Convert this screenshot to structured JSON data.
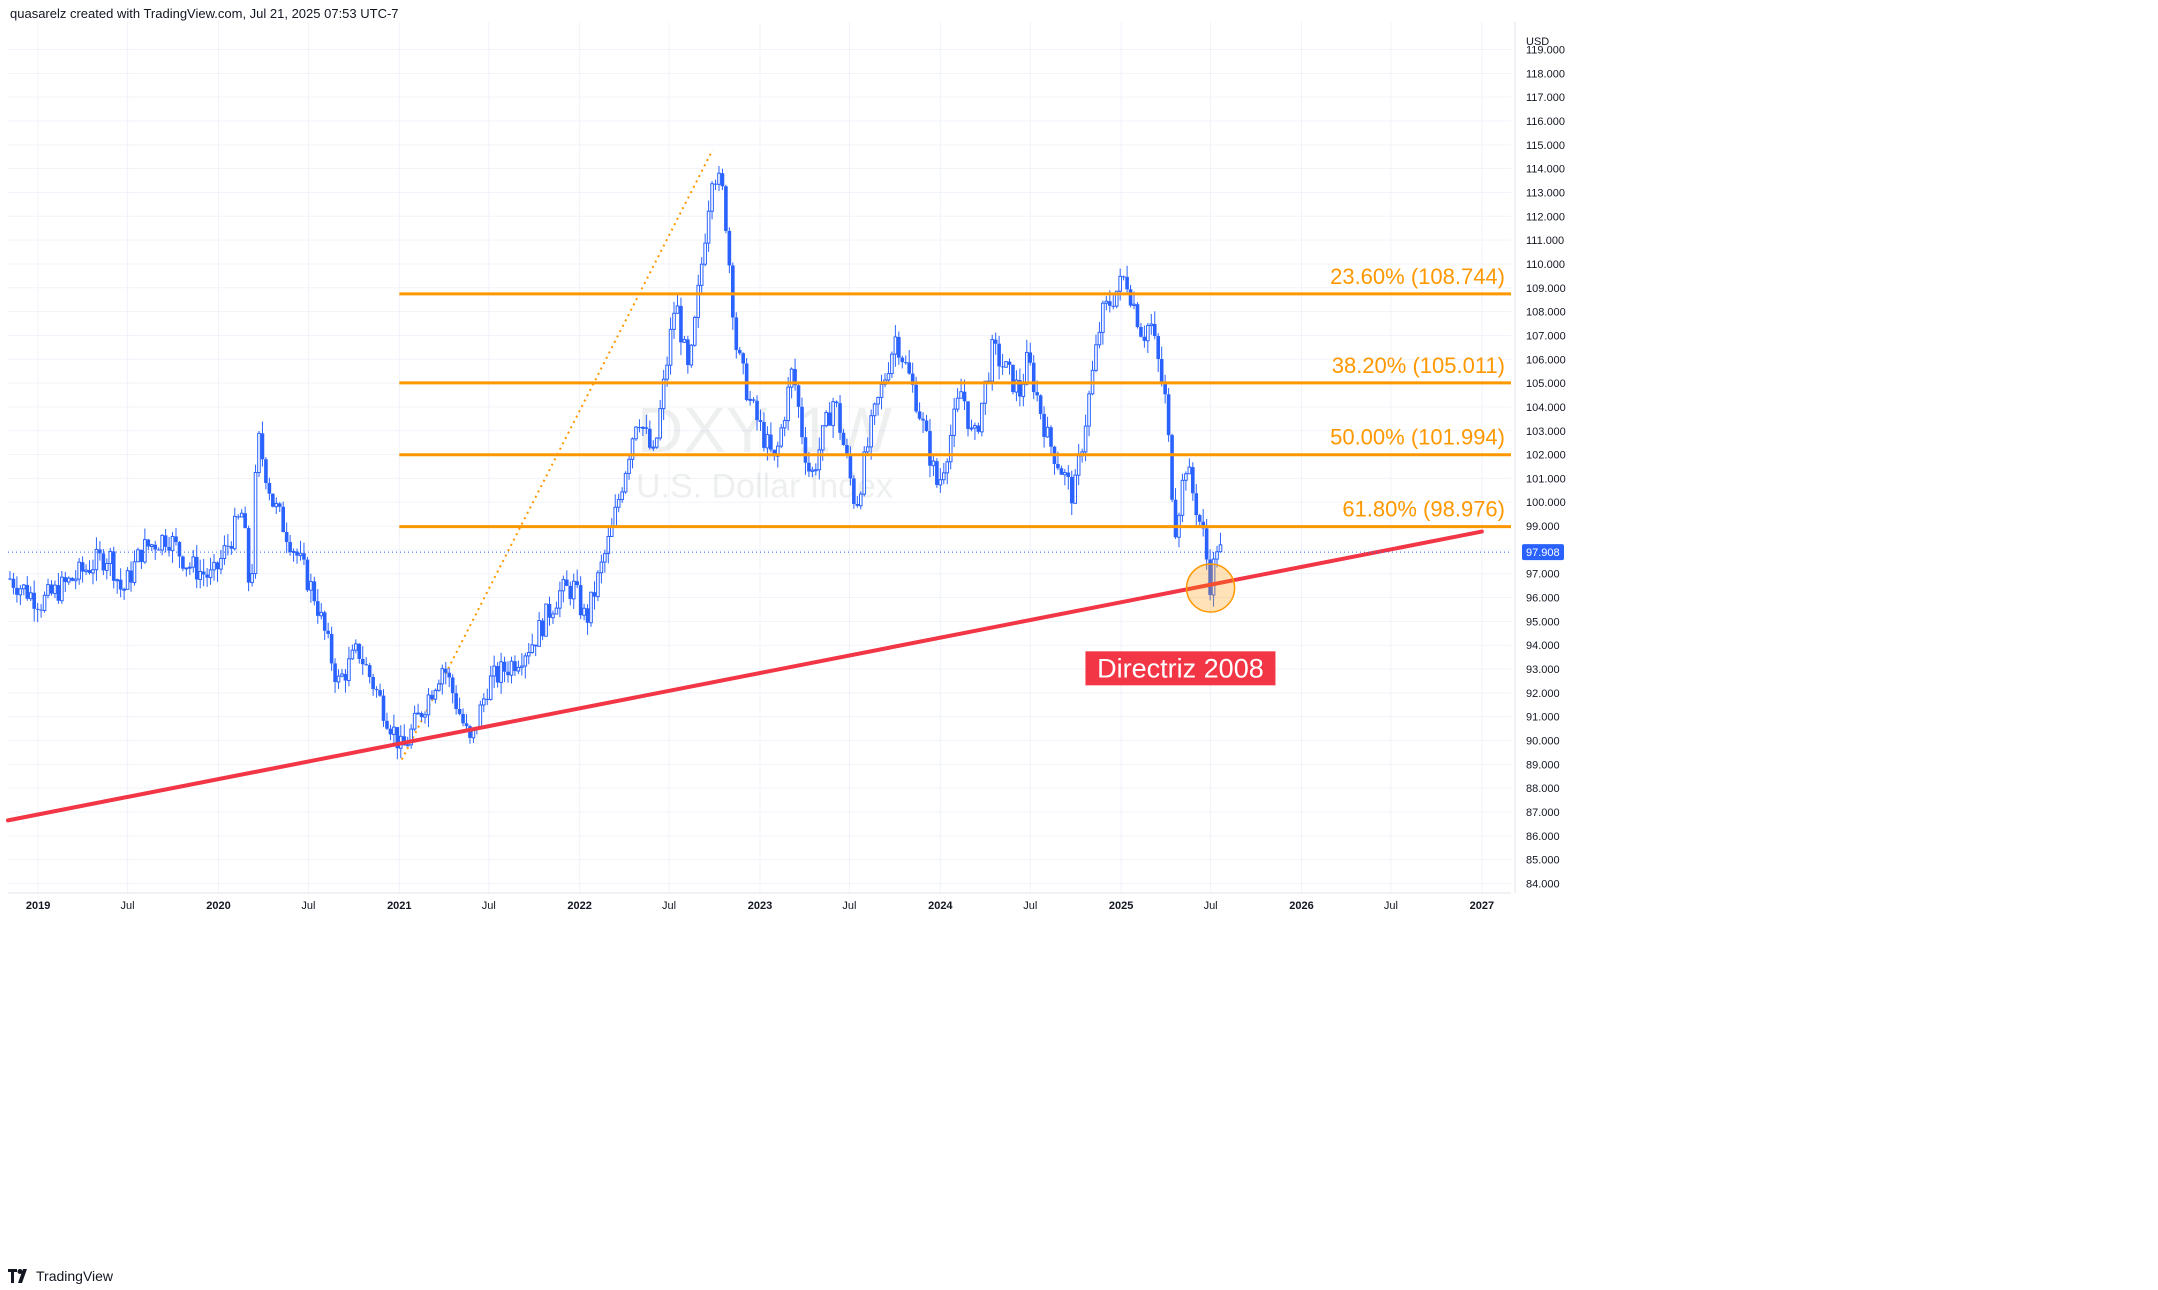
{
  "attribution": "quasarelz created with TradingView.com, Jul 21, 2025 07:53 UTC-7",
  "footer": {
    "brand": "TradingView",
    "logo_icon": "tradingview-logo-icon"
  },
  "watermark": {
    "symbol": "DXY, 1W",
    "name": "U.S. Dollar Index"
  },
  "colors": {
    "candle_up": "#2962ff",
    "fib_line": "#ff9800",
    "fib_label": "#ff9800",
    "trendline": "#f23645",
    "label_bg": "#f23645",
    "circle": "#ff9800",
    "price_tag_bg": "#2962ff",
    "grid": "#f0f3fa",
    "axis_text": "#131722"
  },
  "chart_data": {
    "type": "candlestick",
    "symbol": "DXY",
    "timeframe": "1W",
    "currency": "USD",
    "current_price": 97.908,
    "current_price_label": "97.908",
    "y_axis": {
      "unit_label": "USD",
      "min": 84,
      "max": 119,
      "ticks": [
        "84.000",
        "85.000",
        "86.000",
        "87.000",
        "88.000",
        "89.000",
        "90.000",
        "91.000",
        "92.000",
        "93.000",
        "94.000",
        "95.000",
        "96.000",
        "97.000",
        "98.000",
        "99.000",
        "100.000",
        "101.000",
        "102.000",
        "103.000",
        "104.000",
        "105.000",
        "106.000",
        "107.000",
        "108.000",
        "109.000",
        "110.000",
        "111.000",
        "112.000",
        "113.000",
        "114.000",
        "115.000",
        "116.000",
        "117.000",
        "118.000",
        "119.000"
      ]
    },
    "x_axis": {
      "range": [
        "2018-11",
        "2027-03"
      ],
      "ticks": [
        {
          "label": "2019",
          "date": "2019-01-01",
          "bold": true
        },
        {
          "label": "Jul",
          "date": "2019-07-01",
          "bold": false
        },
        {
          "label": "2020",
          "date": "2020-01-01",
          "bold": true
        },
        {
          "label": "Jul",
          "date": "2020-07-01",
          "bold": false
        },
        {
          "label": "2021",
          "date": "2021-01-01",
          "bold": true
        },
        {
          "label": "Jul",
          "date": "2021-07-01",
          "bold": false
        },
        {
          "label": "2022",
          "date": "2022-01-01",
          "bold": true
        },
        {
          "label": "Jul",
          "date": "2022-07-01",
          "bold": false
        },
        {
          "label": "2023",
          "date": "2023-01-01",
          "bold": true
        },
        {
          "label": "Jul",
          "date": "2023-07-01",
          "bold": false
        },
        {
          "label": "2024",
          "date": "2024-01-01",
          "bold": true
        },
        {
          "label": "Jul",
          "date": "2024-07-01",
          "bold": false
        },
        {
          "label": "2025",
          "date": "2025-01-01",
          "bold": true
        },
        {
          "label": "Jul",
          "date": "2025-07-01",
          "bold": false
        },
        {
          "label": "2026",
          "date": "2026-01-01",
          "bold": true
        },
        {
          "label": "Jul",
          "date": "2026-07-01",
          "bold": false
        },
        {
          "label": "2027",
          "date": "2027-01-01",
          "bold": true
        }
      ]
    },
    "price_path": [
      [
        "2018-11-05",
        96.8
      ],
      [
        "2019-01-07",
        95.8
      ],
      [
        "2019-03-01",
        96.6
      ],
      [
        "2019-04-20",
        97.4
      ],
      [
        "2019-05-25",
        97.8
      ],
      [
        "2019-06-20",
        96.2
      ],
      [
        "2019-07-30",
        98.0
      ],
      [
        "2019-09-20",
        98.6
      ],
      [
        "2019-10-30",
        97.4
      ],
      [
        "2019-12-20",
        96.8
      ],
      [
        "2020-02-19",
        99.6
      ],
      [
        "2020-03-06",
        95.8
      ],
      [
        "2020-03-20",
        102.8
      ],
      [
        "2020-04-20",
        100.0
      ],
      [
        "2020-05-30",
        98.2
      ],
      [
        "2020-07-15",
        96.0
      ],
      [
        "2020-08-30",
        92.4
      ],
      [
        "2020-10-10",
        93.8
      ],
      [
        "2020-12-31",
        89.9
      ],
      [
        "2021-01-06",
        89.5
      ],
      [
        "2021-03-31",
        93.2
      ],
      [
        "2021-05-25",
        89.8
      ],
      [
        "2021-06-30",
        92.4
      ],
      [
        "2021-08-20",
        93.3
      ],
      [
        "2021-09-30",
        94.2
      ],
      [
        "2021-11-20",
        96.2
      ],
      [
        "2021-12-20",
        96.4
      ],
      [
        "2022-01-14",
        95.0
      ],
      [
        "2022-03-07",
        98.8
      ],
      [
        "2022-04-28",
        103.8
      ],
      [
        "2022-05-31",
        101.8
      ],
      [
        "2022-07-14",
        108.5
      ],
      [
        "2022-08-10",
        105.2
      ],
      [
        "2022-09-27",
        114.1
      ],
      [
        "2022-10-20",
        112.8
      ],
      [
        "2022-11-15",
        106.3
      ],
      [
        "2022-12-15",
        104.0
      ],
      [
        "2023-01-31",
        101.6
      ],
      [
        "2023-03-08",
        105.6
      ],
      [
        "2023-03-31",
        102.4
      ],
      [
        "2023-04-14",
        101.0
      ],
      [
        "2023-05-31",
        104.4
      ],
      [
        "2023-07-14",
        99.8
      ],
      [
        "2023-08-15",
        103.2
      ],
      [
        "2023-10-03",
        107.0
      ],
      [
        "2023-11-15",
        104.2
      ],
      [
        "2023-12-27",
        100.6
      ],
      [
        "2024-02-14",
        104.8
      ],
      [
        "2024-03-08",
        102.4
      ],
      [
        "2024-04-16",
        106.4
      ],
      [
        "2024-06-10",
        104.6
      ],
      [
        "2024-06-26",
        106.0
      ],
      [
        "2024-08-05",
        102.7
      ],
      [
        "2024-09-27",
        100.2
      ],
      [
        "2024-10-25",
        104.0
      ],
      [
        "2024-11-22",
        107.8
      ],
      [
        "2025-01-10",
        109.5
      ],
      [
        "2025-02-14",
        107.0
      ],
      [
        "2025-03-01",
        107.6
      ],
      [
        "2025-04-01",
        104.2
      ],
      [
        "2025-04-20",
        98.9
      ],
      [
        "2025-05-12",
        101.6
      ],
      [
        "2025-06-16",
        98.6
      ],
      [
        "2025-07-01",
        96.5
      ],
      [
        "2025-07-14",
        98.2
      ],
      [
        "2025-07-21",
        97.908
      ]
    ],
    "fib_base_line": {
      "from_date": "2021-01-06",
      "from_price": 89.2,
      "to_date": "2022-09-27",
      "to_price": 114.78
    },
    "fib_retracement": {
      "from_date": "2021-01-01",
      "to_date": "2027-03-01",
      "levels": [
        {
          "ratio": "23.60%",
          "price": 108.744,
          "label": "23.60% (108.744)"
        },
        {
          "ratio": "38.20%",
          "price": 105.011,
          "label": "38.20% (105.011)"
        },
        {
          "ratio": "50.00%",
          "price": 101.994,
          "label": "50.00% (101.994)"
        },
        {
          "ratio": "61.80%",
          "price": 98.976,
          "label": "61.80% (98.976)"
        }
      ]
    },
    "trendline": {
      "from_date": "2018-11-01",
      "from_price": 86.65,
      "to_date": "2027-01-01",
      "to_price": 98.77
    },
    "trendline_label": "Directriz 2008",
    "highlight_circle": {
      "date": "2025-07-01",
      "price": 96.4
    }
  }
}
